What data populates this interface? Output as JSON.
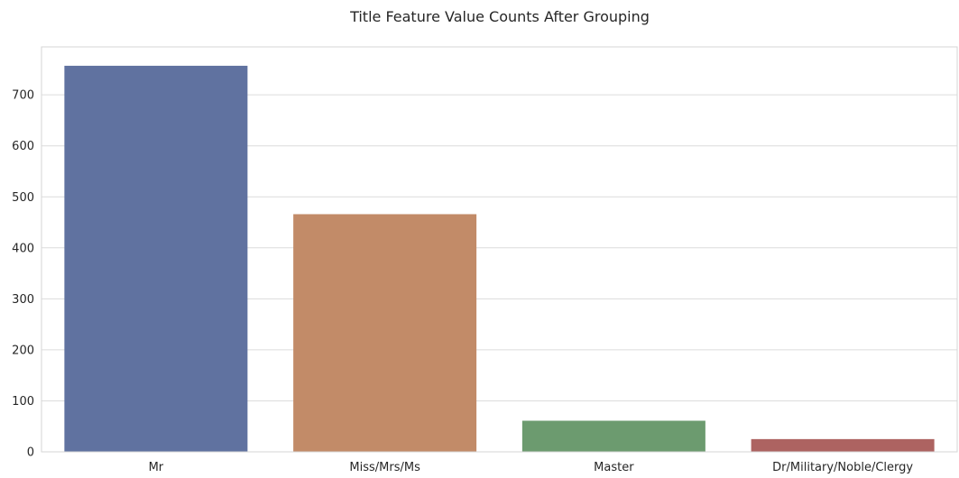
{
  "chart_data": {
    "type": "bar",
    "title": "Title Feature Value Counts After Grouping",
    "xlabel": "",
    "ylabel": "",
    "categories": [
      "Mr",
      "Miss/Mrs/Ms",
      "Master",
      "Dr/Military/Noble/Clergy"
    ],
    "values": [
      757,
      466,
      61,
      25
    ],
    "colors": [
      "#6072a0",
      "#c28b68",
      "#6c9b6f",
      "#ad6361"
    ],
    "ylim": [
      0,
      794
    ],
    "yticks": [
      0,
      100,
      200,
      300,
      400,
      500,
      600,
      700
    ],
    "grid": true,
    "legend": "none"
  }
}
